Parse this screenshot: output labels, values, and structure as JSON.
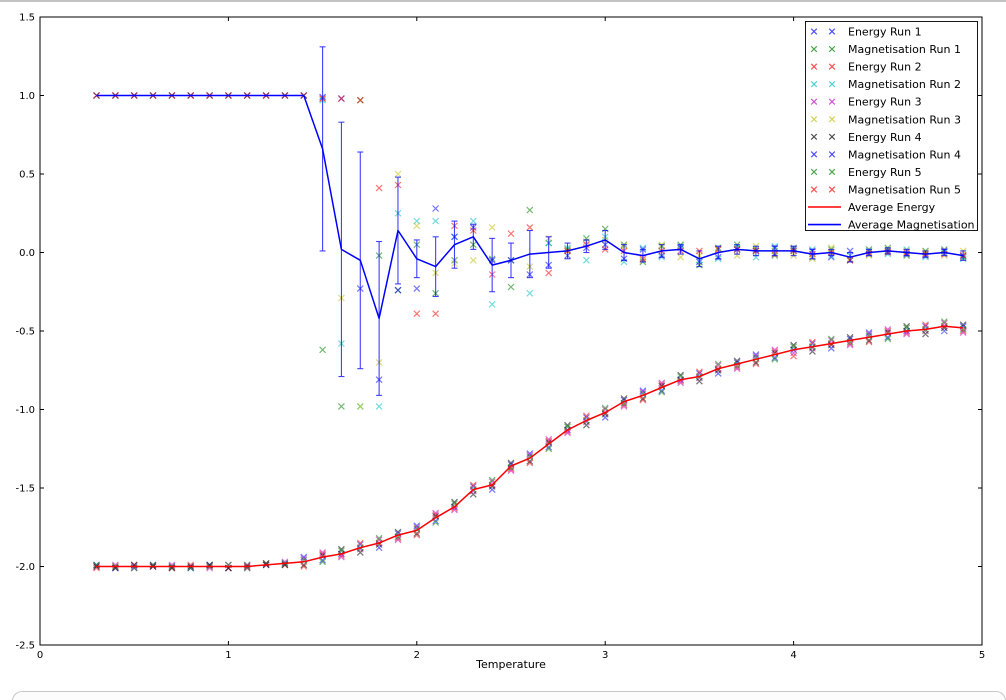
{
  "page": {
    "background": "#ffffff",
    "top_border_color": "#c3c3c3",
    "panel_border_color": "#c6c6c6",
    "panel_fill": "#fcfcfc"
  },
  "chart_data": {
    "type": "scatter",
    "title": "",
    "xlabel": "Temperature",
    "ylabel": "",
    "xlim": [
      0,
      5
    ],
    "ylim": [
      -2.5,
      1.5
    ],
    "xticks": [
      0,
      1,
      2,
      3,
      4,
      5
    ],
    "xtick_labels": [
      "0",
      "1",
      "2",
      "3",
      "4",
      "5"
    ],
    "yticks": [
      -2.5,
      -2.0,
      -1.5,
      -1.0,
      -0.5,
      0.0,
      0.5,
      1.0,
      1.5
    ],
    "ytick_labels": [
      "-2.5",
      "-2.0",
      "-1.5",
      "-1.0",
      "-0.5",
      "0.0",
      "0.5",
      "1.0",
      "1.5"
    ],
    "grid": false,
    "legend_position": "upper right",
    "axis_color": "#000000",
    "marker": "x",
    "marker_size": 3,
    "scatter_opacity": 0.55,
    "x": [
      0.3,
      0.4,
      0.5,
      0.6,
      0.7,
      0.8,
      0.9,
      1.0,
      1.1,
      1.2,
      1.3,
      1.4,
      1.5,
      1.6,
      1.7,
      1.8,
      1.9,
      2.0,
      2.1,
      2.2,
      2.3,
      2.4,
      2.5,
      2.6,
      2.7,
      2.8,
      2.9,
      3.0,
      3.1,
      3.2,
      3.3,
      3.4,
      3.5,
      3.6,
      3.7,
      3.8,
      3.9,
      4.0,
      4.1,
      4.2,
      4.3,
      4.4,
      4.5,
      4.6,
      4.7,
      4.8,
      4.9
    ],
    "series": [
      {
        "name": "Energy Run 1",
        "kind": "scatter",
        "color": "#0000ff",
        "values": [
          -1.99,
          -2.01,
          -2.0,
          -1.99,
          -2.0,
          -2.01,
          -1.99,
          -2.01,
          -2.0,
          -1.98,
          -1.98,
          -1.94,
          -1.96,
          -1.92,
          -1.86,
          -1.88,
          -1.79,
          -1.74,
          -1.71,
          -1.62,
          -1.49,
          -1.51,
          -1.35,
          -1.28,
          -1.24,
          -1.13,
          -1.05,
          -1.05,
          -0.94,
          -0.88,
          -0.88,
          -0.81,
          -0.77,
          -0.77,
          -0.7,
          -0.65,
          -0.67,
          -0.62,
          -0.58,
          -0.61,
          -0.55,
          -0.51,
          -0.54,
          -0.5,
          -0.47,
          -0.5,
          -0.47
        ]
      },
      {
        "name": "Magnetisation Run 1",
        "kind": "scatter",
        "color": "#008000",
        "values": [
          1,
          1,
          1,
          1,
          1,
          1,
          1,
          1,
          1,
          1,
          1,
          1,
          -0.62,
          -0.98,
          0.97,
          -0.02,
          -0.24,
          0.05,
          -0.26,
          -0.05,
          0.05,
          -0.04,
          -0.22,
          0.27,
          0.06,
          0.02,
          0.09,
          0.15,
          0.05,
          -0.06,
          0.04,
          0.05,
          -0.08,
          0.03,
          0.05,
          0.02,
          -0.02,
          0.03,
          -0.03,
          0.02,
          -0.05,
          0.02,
          0.03,
          -0.02,
          0.01,
          0.02,
          -0.03
        ]
      },
      {
        "name": "Energy Run 2",
        "kind": "scatter",
        "color": "#ff0000",
        "values": [
          -2.01,
          -2.0,
          -1.99,
          -2.0,
          -2.01,
          -1.99,
          -2.0,
          -2.01,
          -2.0,
          -1.98,
          -1.99,
          -2.0,
          -1.92,
          -1.93,
          -1.85,
          -1.85,
          -1.82,
          -1.8,
          -1.67,
          -1.63,
          -1.48,
          -1.48,
          -1.38,
          -1.34,
          -1.2,
          -1.14,
          -1.04,
          -1.02,
          -0.97,
          -0.94,
          -0.84,
          -0.82,
          -0.76,
          -0.74,
          -0.73,
          -0.71,
          -0.63,
          -0.66,
          -0.57,
          -0.58,
          -0.58,
          -0.57,
          -0.5,
          -0.51,
          -0.46,
          -0.47,
          -0.5
        ]
      },
      {
        "name": "Magnetisation Run 2",
        "kind": "scatter",
        "color": "#00bfbf",
        "values": [
          1,
          1,
          1,
          1,
          1,
          1,
          1,
          1,
          1,
          1,
          1,
          1,
          0.97,
          -0.58,
          -0.98,
          -0.98,
          0.25,
          0.2,
          0.2,
          0.1,
          0.2,
          -0.33,
          -0.05,
          -0.26,
          0.06,
          0.03,
          -0.05,
          0.1,
          -0.06,
          0.03,
          -0.03,
          0.04,
          -0.05,
          -0.04,
          0.03,
          -0.03,
          0.04,
          0.01,
          0.02,
          -0.02,
          -0.02,
          0.01,
          -0.01,
          0.02,
          -0.03,
          0.0,
          -0.04
        ]
      },
      {
        "name": "Energy Run 3",
        "kind": "scatter",
        "color": "#bf00bf",
        "values": [
          -2.0,
          -1.99,
          -2.01,
          -2.0,
          -1.99,
          -2.0,
          -2.01,
          -1.99,
          -2.01,
          -1.99,
          -1.97,
          -1.95,
          -1.91,
          -1.94,
          -1.89,
          -1.83,
          -1.83,
          -1.75,
          -1.66,
          -1.64,
          -1.52,
          -1.46,
          -1.39,
          -1.29,
          -1.19,
          -1.15,
          -1.08,
          -1.0,
          -0.98,
          -0.89,
          -0.83,
          -0.83,
          -0.8,
          -0.72,
          -0.74,
          -0.66,
          -0.62,
          -0.64,
          -0.61,
          -0.56,
          -0.59,
          -0.52,
          -0.49,
          -0.52,
          -0.5,
          -0.45,
          -0.51
        ]
      },
      {
        "name": "Magnetisation Run 3",
        "kind": "scatter",
        "color": "#bfbf00",
        "values": [
          1,
          1,
          1,
          1,
          1,
          1,
          1,
          1,
          1,
          1,
          1,
          1,
          0.98,
          -0.29,
          -0.98,
          -0.7,
          0.5,
          0.17,
          -0.13,
          -0.07,
          -0.05,
          0.16,
          -0.05,
          -0.09,
          0.09,
          0.01,
          0.07,
          0.08,
          0.04,
          -0.05,
          0.05,
          -0.03,
          -0.02,
          0.02,
          -0.02,
          0.04,
          0.01,
          -0.02,
          -0.04,
          0.03,
          -0.04,
          -0.02,
          0.02,
          0.01,
          0.0,
          -0.02,
          0.01
        ]
      },
      {
        "name": "Energy Run 4",
        "kind": "scatter",
        "color": "#000000",
        "values": [
          -2.0,
          -2.01,
          -1.99,
          -2.0,
          -2.01,
          -2.0,
          -1.99,
          -2.01,
          -1.99,
          -1.99,
          -1.99,
          -1.99,
          -1.93,
          -1.89,
          -1.91,
          -1.86,
          -1.78,
          -1.79,
          -1.68,
          -1.59,
          -1.54,
          -1.49,
          -1.34,
          -1.33,
          -1.21,
          -1.1,
          -1.1,
          -1.03,
          -0.93,
          -0.93,
          -0.85,
          -0.78,
          -0.82,
          -0.75,
          -0.69,
          -0.7,
          -0.64,
          -0.59,
          -0.63,
          -0.59,
          -0.54,
          -0.56,
          -0.51,
          -0.47,
          -0.52,
          -0.48,
          -0.46
        ]
      },
      {
        "name": "Magnetisation Run 4",
        "kind": "scatter",
        "color": "#0000ff",
        "values": [
          1,
          1,
          1,
          1,
          1,
          1,
          1,
          1,
          1,
          1,
          1,
          1,
          0.99,
          0.98,
          -0.23,
          -0.81,
          -0.24,
          -0.23,
          0.28,
          0.1,
          0.16,
          -0.05,
          -0.05,
          -0.14,
          -0.08,
          -0.02,
          0.03,
          0.05,
          -0.04,
          0.02,
          -0.02,
          0.03,
          -0.06,
          -0.03,
          0.02,
          0.01,
          0.03,
          0.02,
          0.01,
          -0.03,
          0.01,
          -0.01,
          0.01,
          -0.01,
          -0.02,
          0.01,
          -0.02
        ]
      },
      {
        "name": "Energy Run 5",
        "kind": "scatter",
        "color": "#008000",
        "values": [
          -1.99,
          -2.0,
          -2.01,
          -1.99,
          -2.0,
          -2.01,
          -2.0,
          -1.99,
          -2.01,
          -1.98,
          -1.98,
          -1.96,
          -1.97,
          -1.9,
          -1.88,
          -1.82,
          -1.81,
          -1.76,
          -1.72,
          -1.6,
          -1.51,
          -1.45,
          -1.37,
          -1.3,
          -1.25,
          -1.11,
          -1.07,
          -0.99,
          -0.96,
          -0.9,
          -0.89,
          -0.79,
          -0.79,
          -0.71,
          -0.72,
          -0.67,
          -0.68,
          -0.6,
          -0.6,
          -0.55,
          -0.57,
          -0.53,
          -0.55,
          -0.48,
          -0.49,
          -0.44,
          -0.49
        ]
      },
      {
        "name": "Magnetisation Run 5",
        "kind": "scatter",
        "color": "#ff0000",
        "values": [
          1,
          1,
          1,
          1,
          1,
          1,
          1,
          1,
          1,
          1,
          1,
          1,
          0.98,
          0.98,
          0.97,
          0.41,
          0.43,
          -0.39,
          -0.39,
          0.17,
          0.14,
          -0.14,
          0.12,
          0.16,
          -0.13,
          0.01,
          0.05,
          0.02,
          0.01,
          -0.04,
          0.01,
          0.01,
          0.01,
          0.02,
          0.02,
          0.01,
          -0.01,
          0.01,
          -0.01,
          0.0,
          -0.05,
          0.0,
          0.0,
          0.0,
          -0.01,
          -0.01,
          -0.02
        ]
      },
      {
        "name": "Average Energy",
        "kind": "line",
        "color": "#ff0000",
        "values": [
          -2.0,
          -2.0,
          -2.0,
          -2.0,
          -2.0,
          -2.0,
          -2.0,
          -2.0,
          -2.0,
          -1.99,
          -1.98,
          -1.97,
          -1.94,
          -1.92,
          -1.88,
          -1.85,
          -1.8,
          -1.77,
          -1.69,
          -1.62,
          -1.51,
          -1.48,
          -1.36,
          -1.31,
          -1.22,
          -1.13,
          -1.07,
          -1.02,
          -0.95,
          -0.91,
          -0.86,
          -0.81,
          -0.79,
          -0.74,
          -0.71,
          -0.68,
          -0.65,
          -0.62,
          -0.6,
          -0.58,
          -0.56,
          -0.54,
          -0.52,
          -0.5,
          -0.49,
          -0.47,
          -0.48
        ]
      },
      {
        "name": "Average Magnetisation",
        "kind": "line",
        "color": "#0000ff",
        "values": [
          1.0,
          1.0,
          1.0,
          1.0,
          1.0,
          1.0,
          1.0,
          1.0,
          1.0,
          1.0,
          1.0,
          1.0,
          0.66,
          0.02,
          -0.05,
          -0.42,
          0.14,
          -0.04,
          -0.09,
          0.05,
          0.1,
          -0.08,
          -0.05,
          -0.01,
          0.0,
          0.01,
          0.04,
          0.08,
          0.0,
          -0.02,
          0.01,
          0.02,
          -0.04,
          0.0,
          0.02,
          0.01,
          0.01,
          0.01,
          -0.01,
          0.0,
          -0.03,
          0.0,
          0.01,
          0.0,
          -0.01,
          0.0,
          -0.02
        ],
        "yerr": [
          0,
          0,
          0,
          0,
          0,
          0,
          0,
          0,
          0,
          0,
          0,
          0,
          0.65,
          0.81,
          0.69,
          0.49,
          0.34,
          0.12,
          0.19,
          0.15,
          0.08,
          0.17,
          0.11,
          0.15,
          0.1,
          0.05,
          0.04,
          0.06,
          0.05,
          0.04,
          0.04,
          0.03,
          0.05,
          0.04,
          0.03,
          0.03,
          0.03,
          0.03,
          0.03,
          0.02,
          0.03,
          0.02,
          0.02,
          0.02,
          0.02,
          0.02,
          0.03
        ]
      }
    ],
    "legend": {
      "labels": [
        "Energy Run 1",
        "Magnetisation Run 1",
        "Energy Run 2",
        "Magnetisation Run 2",
        "Energy Run 3",
        "Magnetisation Run 3",
        "Energy Run 4",
        "Magnetisation Run 4",
        "Energy Run 5",
        "Magnetisation Run 5",
        "Average Energy",
        "Average Magnetisation"
      ]
    }
  }
}
